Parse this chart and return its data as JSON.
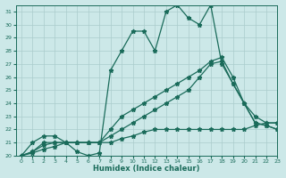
{
  "xlabel": "Humidex (Indice chaleur)",
  "xlim": [
    -0.5,
    23
  ],
  "ylim": [
    20,
    31.5
  ],
  "yticks": [
    20,
    21,
    22,
    23,
    24,
    25,
    26,
    27,
    28,
    29,
    30,
    31
  ],
  "xticks": [
    0,
    1,
    2,
    3,
    4,
    5,
    6,
    7,
    8,
    9,
    10,
    11,
    12,
    13,
    14,
    15,
    16,
    17,
    18,
    19,
    20,
    21,
    22,
    23
  ],
  "bg_color": "#cce8e8",
  "line_color": "#1a6b5a",
  "grid_color": "#aacccc",
  "lines": [
    {
      "x": [
        0,
        1,
        2,
        3,
        4,
        5,
        6,
        7,
        8,
        9,
        10,
        11,
        12,
        13,
        14,
        15,
        16,
        17,
        18,
        19,
        20,
        21,
        22,
        23
      ],
      "y": [
        20,
        21,
        21.5,
        21.5,
        21,
        20.3,
        20,
        20.2,
        26.5,
        28,
        29.5,
        29.5,
        28,
        31,
        31.5,
        30.5,
        30,
        31.5,
        27,
        25.5,
        24,
        23,
        22.5,
        22.5
      ]
    },
    {
      "x": [
        0,
        1,
        2,
        3,
        4,
        5,
        6,
        7,
        8,
        9,
        10,
        11,
        12,
        13,
        14,
        15,
        16,
        17,
        18,
        19,
        20,
        21,
        22,
        23
      ],
      "y": [
        20,
        20.2,
        20.5,
        20.7,
        21,
        21,
        21,
        21,
        21,
        21.3,
        21.5,
        21.8,
        22,
        22,
        22,
        22,
        22,
        22,
        22,
        22,
        22,
        22.3,
        22.5,
        22.5
      ]
    },
    {
      "x": [
        0,
        1,
        2,
        3,
        4,
        5,
        6,
        7,
        8,
        9,
        10,
        11,
        12,
        13,
        14,
        15,
        16,
        17,
        18,
        19,
        20,
        21,
        22,
        23
      ],
      "y": [
        20,
        20.3,
        20.8,
        21,
        21,
        21,
        21,
        21,
        21.5,
        22,
        22.5,
        23,
        23.5,
        24,
        24.5,
        25,
        26,
        27,
        27.2,
        25.5,
        24,
        22.5,
        22.3,
        22
      ]
    },
    {
      "x": [
        0,
        1,
        2,
        3,
        4,
        5,
        6,
        7,
        8,
        9,
        10,
        11,
        12,
        13,
        14,
        15,
        16,
        17,
        18,
        19,
        20,
        21,
        22,
        23
      ],
      "y": [
        20,
        20.3,
        21,
        21,
        21,
        21,
        21,
        21,
        22,
        23,
        23.5,
        24,
        24.5,
        25,
        25.5,
        26,
        26.5,
        27.2,
        27.5,
        26,
        24,
        22.5,
        22.3,
        22
      ]
    }
  ]
}
